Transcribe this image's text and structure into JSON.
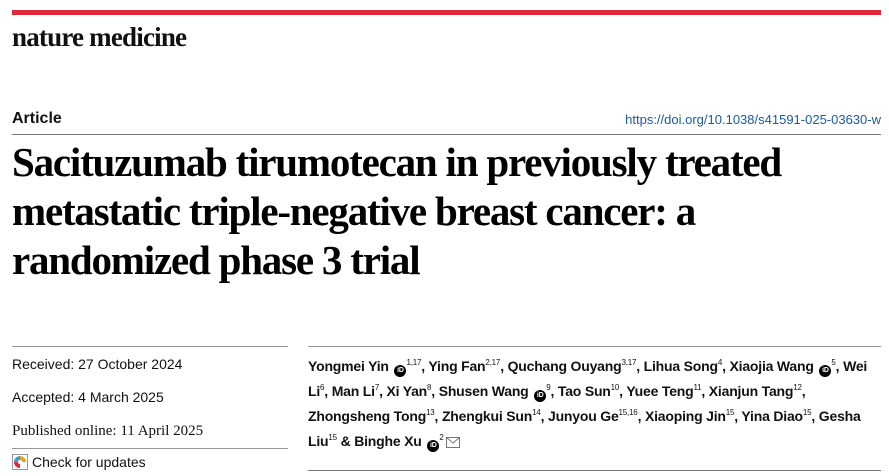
{
  "journal": {
    "name": "nature medicine"
  },
  "article": {
    "type": "Article",
    "doi": "https://doi.org/10.1038/s41591-025-03630-w",
    "title": "Sacituzumab tirumotecan in previously treated metastatic triple-negative breast cancer: a randomized phase 3 trial"
  },
  "dates": {
    "received": "Received: 27 October 2024",
    "accepted": "Accepted: 4 March 2025",
    "published": "Published online: 11 April 2025"
  },
  "check_updates": {
    "label": "Check for updates"
  },
  "authors": [
    {
      "name": "Yongmei Yin",
      "orcid": true,
      "aff": "1,17"
    },
    {
      "name": "Ying Fan",
      "orcid": false,
      "aff": "2,17"
    },
    {
      "name": "Quchang Ouyang",
      "orcid": false,
      "aff": "3,17"
    },
    {
      "name": "Lihua Song",
      "orcid": false,
      "aff": "4"
    },
    {
      "name": "Xiaojia Wang",
      "orcid": true,
      "aff": "5"
    },
    {
      "name": "Wei Li",
      "orcid": false,
      "aff": "6"
    },
    {
      "name": "Man Li",
      "orcid": false,
      "aff": "7"
    },
    {
      "name": "Xi Yan",
      "orcid": false,
      "aff": "8"
    },
    {
      "name": "Shusen Wang",
      "orcid": true,
      "aff": "9"
    },
    {
      "name": "Tao Sun",
      "orcid": false,
      "aff": "10"
    },
    {
      "name": "Yuee Teng",
      "orcid": false,
      "aff": "11"
    },
    {
      "name": "Xianjun Tang",
      "orcid": false,
      "aff": "12"
    },
    {
      "name": "Zhongsheng Tong",
      "orcid": false,
      "aff": "13"
    },
    {
      "name": "Zhengkui Sun",
      "orcid": false,
      "aff": "14"
    },
    {
      "name": "Junyou Ge",
      "orcid": false,
      "aff": "15,16"
    },
    {
      "name": "Xiaoping Jin",
      "orcid": false,
      "aff": "15"
    },
    {
      "name": "Yina Diao",
      "orcid": false,
      "aff": "15"
    },
    {
      "name": "Gesha Liu",
      "orcid": false,
      "aff": "15"
    },
    {
      "name": "Binghe Xu",
      "orcid": true,
      "aff": "2",
      "corresponding": true
    }
  ],
  "icons": {
    "orcid": "orcid-icon",
    "mail": "mail-icon",
    "check": "check-updates-icon"
  },
  "colors": {
    "accent_bar": "#e0283a",
    "doi_link": "#1a5aa5"
  }
}
